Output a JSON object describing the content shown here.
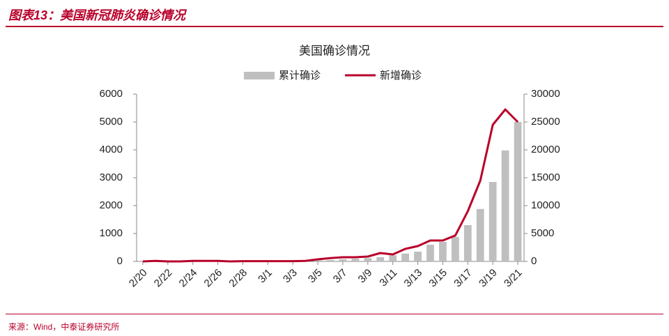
{
  "header": "图表13：美国新冠肺炎确诊情况",
  "source": "来源：Wind，中泰证券研究所",
  "chart_data": {
    "type": "bar-line",
    "title": "美国确诊情况",
    "categories": [
      "2/20",
      null,
      "2/22",
      null,
      "2/24",
      null,
      "2/26",
      null,
      "2/28",
      null,
      "3/1",
      null,
      "3/3",
      null,
      "3/5",
      null,
      "3/7",
      null,
      "3/9",
      null,
      "3/11",
      null,
      "3/13",
      null,
      "3/15",
      null,
      "3/17",
      null,
      "3/19",
      null,
      "3/21"
    ],
    "series": [
      {
        "name": "累计确诊",
        "kind": "bar",
        "axis": "y2",
        "color": "#bfbfbf",
        "values": [
          15,
          15,
          35,
          35,
          53,
          53,
          57,
          60,
          60,
          68,
          75,
          100,
          120,
          150,
          200,
          250,
          400,
          500,
          600,
          750,
          1100,
          1400,
          1750,
          3000,
          3500,
          4400,
          6500,
          9400,
          14250,
          19900,
          25000
        ]
      },
      {
        "name": "新增确诊",
        "kind": "line",
        "axis": "y",
        "color": "#b8002a",
        "values": [
          0,
          20,
          0,
          0,
          18,
          18,
          18,
          0,
          8,
          8,
          10,
          10,
          10,
          20,
          75,
          120,
          150,
          150,
          175,
          300,
          250,
          450,
          550,
          750,
          750,
          930,
          1800,
          2900,
          4900,
          5450,
          5000
        ]
      }
    ],
    "ylim": [
      0,
      6000
    ],
    "yticks": [
      0,
      1000,
      2000,
      3000,
      4000,
      5000,
      6000
    ],
    "y2lim": [
      0,
      30000
    ],
    "y2ticks": [
      0,
      5000,
      10000,
      15000,
      20000,
      25000,
      30000
    ]
  }
}
